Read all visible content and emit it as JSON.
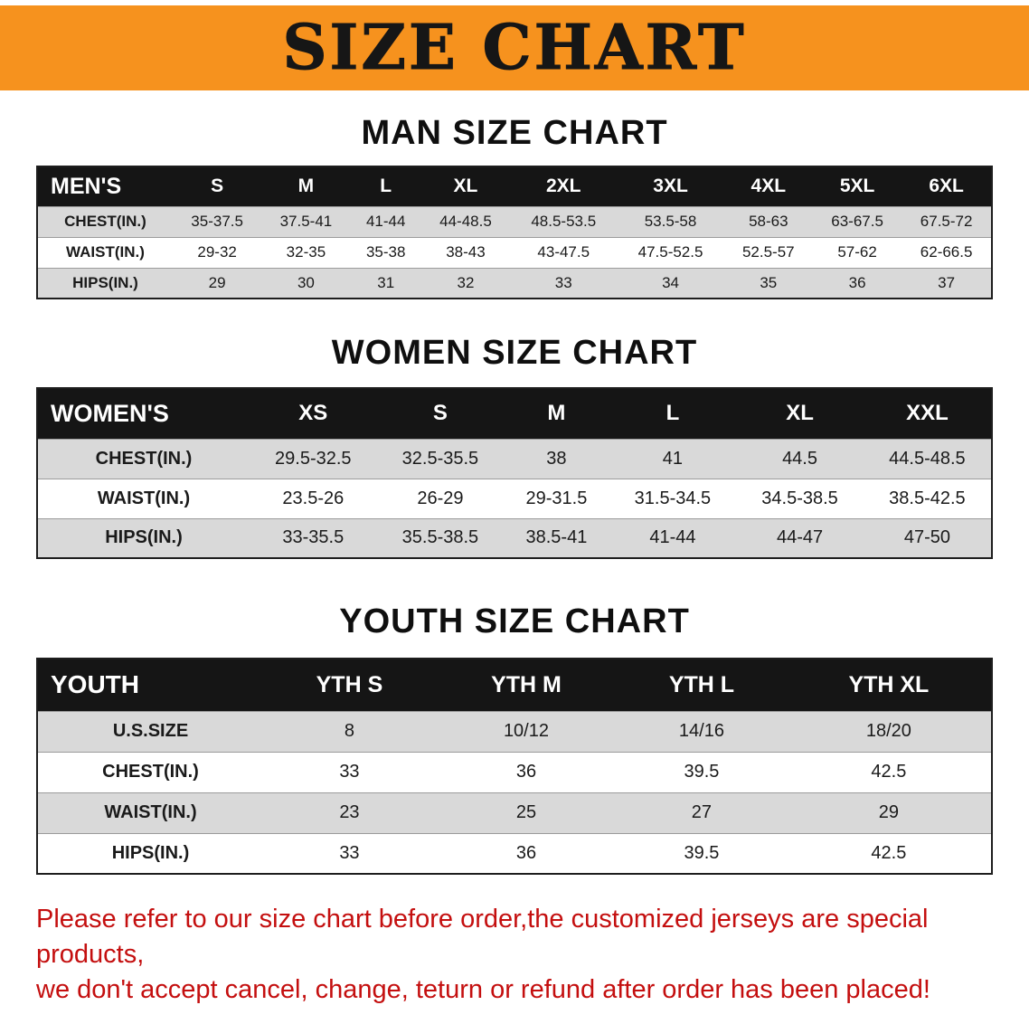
{
  "banner": {
    "title": "SIZE CHART",
    "bg_color": "#F6921E",
    "text_color": "#161616"
  },
  "colors": {
    "table_header_bg": "#151515",
    "table_row_alt_bg": "#d9d9d9",
    "footer_text": "#C40F0F"
  },
  "sections": [
    {
      "title": "MAN SIZE CHART",
      "table": {
        "header": [
          "MEN'S",
          "S",
          "M",
          "L",
          "XL",
          "2XL",
          "3XL",
          "4XL",
          "5XL",
          "6XL"
        ],
        "rows": [
          [
            "CHEST(IN.)",
            "35-37.5",
            "37.5-41",
            "41-44",
            "44-48.5",
            "48.5-53.5",
            "53.5-58",
            "58-63",
            "63-67.5",
            "67.5-72"
          ],
          [
            "WAIST(IN.)",
            "29-32",
            "32-35",
            "35-38",
            "38-43",
            "43-47.5",
            "47.5-52.5",
            "52.5-57",
            "57-62",
            "62-66.5"
          ],
          [
            "HIPS(IN.)",
            "29",
            "30",
            "31",
            "32",
            "33",
            "34",
            "35",
            "36",
            "37"
          ]
        ]
      }
    },
    {
      "title": "WOMEN SIZE CHART",
      "table": {
        "header": [
          "WOMEN'S",
          "XS",
          "S",
          "M",
          "L",
          "XL",
          "XXL"
        ],
        "rows": [
          [
            "CHEST(IN.)",
            "29.5-32.5",
            "32.5-35.5",
            "38",
            "41",
            "44.5",
            "44.5-48.5"
          ],
          [
            "WAIST(IN.)",
            "23.5-26",
            "26-29",
            "29-31.5",
            "31.5-34.5",
            "34.5-38.5",
            "38.5-42.5"
          ],
          [
            "HIPS(IN.)",
            "33-35.5",
            "35.5-38.5",
            "38.5-41",
            "41-44",
            "44-47",
            "47-50"
          ]
        ]
      }
    },
    {
      "title": "YOUTH SIZE CHART",
      "table": {
        "header": [
          "YOUTH",
          "YTH S",
          "YTH M",
          "YTH L",
          "YTH XL"
        ],
        "rows": [
          [
            "U.S.SIZE",
            "8",
            "10/12",
            "14/16",
            "18/20"
          ],
          [
            "CHEST(IN.)",
            "33",
            "36",
            "39.5",
            "42.5"
          ],
          [
            "WAIST(IN.)",
            "23",
            "25",
            "27",
            "29"
          ],
          [
            "HIPS(IN.)",
            "33",
            "36",
            "39.5",
            "42.5"
          ]
        ]
      }
    }
  ],
  "footer": {
    "line1": "Please refer to our size chart before order,the customized jerseys are special products,",
    "line2": "we don't accept cancel, change, teturn or refund after order has been placed!"
  }
}
